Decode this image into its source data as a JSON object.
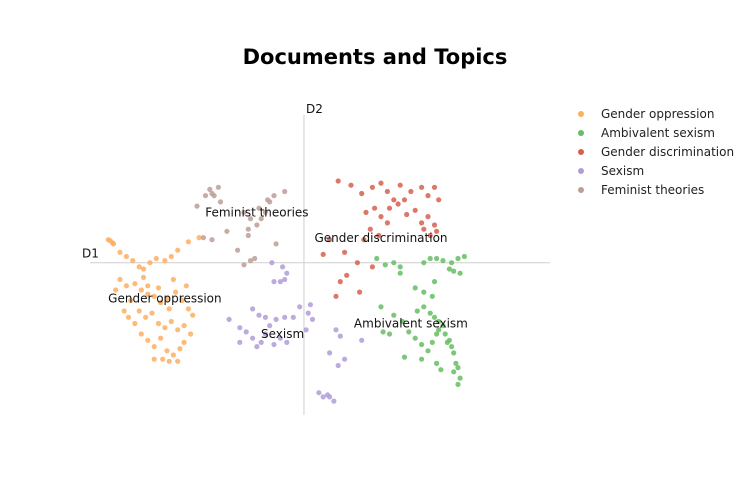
{
  "chart_data": {
    "type": "scatter",
    "title": "Documents and Topics",
    "xlabel": "D1",
    "ylabel": "D2",
    "xlim": [
      -10,
      11.5
    ],
    "ylim": [
      -7.5,
      8
    ],
    "grid": false,
    "legend_position": "top-right",
    "series": [
      {
        "name": "Gender oppression",
        "color": "#fdae61",
        "points": [
          [
            -9.15,
            1.1
          ],
          [
            -9.05,
            1.05
          ],
          [
            -8.95,
            0.95
          ],
          [
            -8.9,
            0.9
          ],
          [
            -8.6,
            0.5
          ],
          [
            -8.3,
            0.3
          ],
          [
            -8.0,
            0.1
          ],
          [
            -7.7,
            -0.2
          ],
          [
            -7.5,
            -0.3
          ],
          [
            -7.2,
            0.0
          ],
          [
            -6.9,
            0.2
          ],
          [
            -6.5,
            0.1
          ],
          [
            -6.2,
            0.3
          ],
          [
            -5.9,
            0.6
          ],
          [
            -5.4,
            1.0
          ],
          [
            -4.9,
            1.2
          ],
          [
            -8.6,
            -0.8
          ],
          [
            -8.3,
            -1.1
          ],
          [
            -7.9,
            -1.0
          ],
          [
            -7.6,
            -1.3
          ],
          [
            -7.3,
            -1.5
          ],
          [
            -7.3,
            -1.1
          ],
          [
            -7.0,
            -1.6
          ],
          [
            -6.7,
            -1.9
          ],
          [
            -6.4,
            -1.7
          ],
          [
            -6.0,
            -1.4
          ],
          [
            -5.7,
            -1.8
          ],
          [
            -5.4,
            -2.2
          ],
          [
            -8.1,
            -1.8
          ],
          [
            -7.7,
            -2.3
          ],
          [
            -7.4,
            -2.6
          ],
          [
            -7.1,
            -2.4
          ],
          [
            -6.8,
            -2.9
          ],
          [
            -6.5,
            -3.1
          ],
          [
            -6.2,
            -2.8
          ],
          [
            -5.9,
            -3.2
          ],
          [
            -5.6,
            -3.0
          ],
          [
            -5.3,
            -3.4
          ],
          [
            -7.9,
            -2.9
          ],
          [
            -7.6,
            -3.4
          ],
          [
            -7.3,
            -3.7
          ],
          [
            -7.0,
            -4.0
          ],
          [
            -6.7,
            -3.6
          ],
          [
            -6.4,
            -4.2
          ],
          [
            -6.1,
            -4.4
          ],
          [
            -5.8,
            -4.1
          ],
          [
            -5.6,
            -3.8
          ],
          [
            -7.0,
            -4.6
          ],
          [
            -6.6,
            -4.6
          ],
          [
            -6.3,
            -4.7
          ],
          [
            -5.9,
            -4.7
          ],
          [
            -8.4,
            -2.3
          ],
          [
            -8.2,
            -2.6
          ],
          [
            -5.5,
            -1.1
          ],
          [
            -8.8,
            -1.3
          ],
          [
            -7.5,
            -0.7
          ],
          [
            -6.8,
            -1.2
          ],
          [
            -6.1,
            -0.8
          ],
          [
            -5.2,
            -2.5
          ],
          [
            -6.3,
            -2.2
          ]
        ]
      },
      {
        "name": "Ambivalent sexism",
        "color": "#66bd63",
        "points": [
          [
            3.4,
            0.2
          ],
          [
            3.8,
            -0.1
          ],
          [
            4.2,
            0.0
          ],
          [
            4.5,
            -0.2
          ],
          [
            5.6,
            0.0
          ],
          [
            5.9,
            0.2
          ],
          [
            6.2,
            0.2
          ],
          [
            6.5,
            0.1
          ],
          [
            6.9,
            0.0
          ],
          [
            7.2,
            0.2
          ],
          [
            7.5,
            0.3
          ],
          [
            6.8,
            -0.3
          ],
          [
            7.0,
            -0.4
          ],
          [
            7.3,
            -0.5
          ],
          [
            6.1,
            -0.9
          ],
          [
            5.6,
            -1.4
          ],
          [
            5.3,
            -2.3
          ],
          [
            5.6,
            -2.1
          ],
          [
            5.9,
            -2.4
          ],
          [
            6.1,
            -2.6
          ],
          [
            6.3,
            -2.8
          ],
          [
            6.5,
            -3.0
          ],
          [
            4.2,
            -2.5
          ],
          [
            4.6,
            -2.8
          ],
          [
            4.9,
            -3.3
          ],
          [
            5.2,
            -3.6
          ],
          [
            5.5,
            -3.9
          ],
          [
            5.8,
            -4.2
          ],
          [
            6.0,
            -3.8
          ],
          [
            6.2,
            -3.4
          ],
          [
            6.3,
            -3.2
          ],
          [
            6.6,
            -3.4
          ],
          [
            6.7,
            -3.8
          ],
          [
            6.9,
            -4.0
          ],
          [
            7.0,
            -4.3
          ],
          [
            7.1,
            -4.8
          ],
          [
            7.2,
            -5.0
          ],
          [
            7.0,
            -5.2
          ],
          [
            7.3,
            -5.5
          ],
          [
            7.2,
            -5.8
          ],
          [
            6.2,
            -4.8
          ],
          [
            6.4,
            -5.1
          ],
          [
            5.5,
            -4.6
          ],
          [
            4.0,
            -3.4
          ],
          [
            3.7,
            -3.3
          ],
          [
            6.0,
            -1.6
          ],
          [
            5.2,
            -1.2
          ],
          [
            3.6,
            -2.1
          ],
          [
            4.7,
            -4.5
          ],
          [
            6.8,
            -3.7
          ],
          [
            4.5,
            -0.5
          ]
        ]
      },
      {
        "name": "Gender discrimination",
        "color": "#d6604d",
        "points": [
          [
            1.6,
            3.9
          ],
          [
            2.2,
            3.7
          ],
          [
            2.7,
            3.3
          ],
          [
            3.2,
            3.6
          ],
          [
            3.6,
            3.8
          ],
          [
            3.9,
            3.4
          ],
          [
            4.2,
            3.0
          ],
          [
            4.5,
            3.7
          ],
          [
            5.0,
            3.4
          ],
          [
            5.5,
            3.6
          ],
          [
            5.8,
            3.2
          ],
          [
            6.1,
            3.6
          ],
          [
            6.3,
            3.0
          ],
          [
            2.9,
            2.4
          ],
          [
            3.3,
            2.6
          ],
          [
            3.6,
            2.2
          ],
          [
            4.0,
            2.6
          ],
          [
            4.4,
            2.8
          ],
          [
            4.8,
            2.3
          ],
          [
            5.2,
            2.5
          ],
          [
            5.5,
            1.9
          ],
          [
            5.8,
            2.2
          ],
          [
            6.1,
            1.8
          ],
          [
            6.2,
            1.5
          ],
          [
            5.9,
            1.3
          ],
          [
            5.6,
            1.6
          ],
          [
            3.1,
            1.6
          ],
          [
            3.5,
            1.3
          ],
          [
            2.8,
            1.1
          ],
          [
            1.9,
            0.5
          ],
          [
            1.2,
            1.1
          ],
          [
            0.9,
            0.4
          ],
          [
            2.5,
            0.0
          ],
          [
            3.2,
            -0.2
          ],
          [
            2.0,
            -0.6
          ],
          [
            1.7,
            -0.9
          ],
          [
            2.6,
            -1.4
          ],
          [
            1.5,
            -1.6
          ],
          [
            4.7,
            3.0
          ],
          [
            3.9,
            1.9
          ]
        ]
      },
      {
        "name": "Sexism",
        "color": "#b19cd9",
        "points": [
          [
            -1.5,
            0.0
          ],
          [
            -1.0,
            -0.2
          ],
          [
            -0.8,
            -0.5
          ],
          [
            -1.4,
            -0.9
          ],
          [
            -1.1,
            -0.9
          ],
          [
            -0.9,
            -0.8
          ],
          [
            -3.5,
            -2.7
          ],
          [
            -2.4,
            -2.2
          ],
          [
            -2.1,
            -2.5
          ],
          [
            -1.8,
            -2.6
          ],
          [
            -1.3,
            -2.7
          ],
          [
            -0.9,
            -2.6
          ],
          [
            -0.5,
            -2.6
          ],
          [
            -0.2,
            -2.1
          ],
          [
            0.2,
            -2.4
          ],
          [
            0.4,
            -2.7
          ],
          [
            0.3,
            -2.0
          ],
          [
            -3.0,
            -3.1
          ],
          [
            -2.7,
            -3.3
          ],
          [
            -2.4,
            -3.6
          ],
          [
            -2.0,
            -3.8
          ],
          [
            -1.8,
            -3.4
          ],
          [
            -1.4,
            -3.9
          ],
          [
            -1.1,
            -3.6
          ],
          [
            -0.8,
            -3.8
          ],
          [
            -2.2,
            -4.0
          ],
          [
            -3.0,
            -3.8
          ],
          [
            1.5,
            -3.2
          ],
          [
            1.7,
            -3.5
          ],
          [
            1.2,
            -4.3
          ],
          [
            1.9,
            -4.6
          ],
          [
            1.6,
            -4.9
          ],
          [
            0.7,
            -6.2
          ],
          [
            0.9,
            -6.4
          ],
          [
            1.1,
            -6.3
          ],
          [
            1.4,
            -6.6
          ],
          [
            1.2,
            -6.4
          ],
          [
            2.7,
            -3.7
          ],
          [
            0.1,
            -3.2
          ],
          [
            -1.6,
            -3.0
          ]
        ]
      },
      {
        "name": "Feminist theories",
        "color": "#bc9e95",
        "points": [
          [
            -4.4,
            3.5
          ],
          [
            -4.0,
            3.6
          ],
          [
            -4.3,
            3.3
          ],
          [
            -4.6,
            3.2
          ],
          [
            -4.2,
            3.2
          ],
          [
            -5.0,
            2.7
          ],
          [
            -2.6,
            1.3
          ],
          [
            -2.6,
            1.6
          ],
          [
            -2.2,
            1.8
          ],
          [
            -2.0,
            2.1
          ],
          [
            -1.8,
            2.4
          ],
          [
            -1.6,
            2.9
          ],
          [
            -1.4,
            3.2
          ],
          [
            -2.1,
            2.6
          ],
          [
            -2.5,
            2.1
          ],
          [
            -1.7,
            3.0
          ],
          [
            -0.9,
            3.4
          ],
          [
            -3.9,
            2.9
          ],
          [
            -3.6,
            1.5
          ],
          [
            -4.3,
            1.1
          ],
          [
            -4.7,
            1.2
          ],
          [
            -3.1,
            0.6
          ],
          [
            -2.5,
            0.1
          ],
          [
            -2.8,
            -0.1
          ],
          [
            -1.3,
            0.9
          ],
          [
            -2.8,
            2.4
          ],
          [
            -2.3,
            0.2
          ]
        ]
      }
    ],
    "annotations": [
      {
        "text": "Feminist theories",
        "x": -2.2,
        "y": 2.2
      },
      {
        "text": "Gender discrimination",
        "x": 3.6,
        "y": 1.0
      },
      {
        "text": "Gender oppression",
        "x": -6.5,
        "y": -1.9
      },
      {
        "text": "Ambivalent sexism",
        "x": 5.0,
        "y": -3.1
      },
      {
        "text": "Sexism",
        "x": -1.0,
        "y": -3.6
      }
    ]
  }
}
